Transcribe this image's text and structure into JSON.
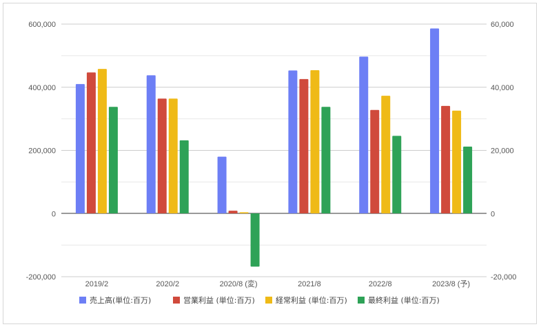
{
  "chart_data": {
    "type": "bar",
    "title": "",
    "xlabel": "",
    "ylabel": "",
    "categories": [
      "2019/2",
      "2020/2",
      "2020/8 (変)",
      "2021/8",
      "2022/8",
      "2023/8 (予)"
    ],
    "series": [
      {
        "name": "売上高(単位:百万)",
        "axis": "left",
        "color": "#6d7ff5",
        "values": [
          410000,
          438000,
          180000,
          453000,
          497000,
          586000
        ]
      },
      {
        "name": "営業利益 (単位:百万)",
        "axis": "right",
        "color": "#d04a3c",
        "values": [
          44700,
          36400,
          900,
          42600,
          32800,
          34100
        ]
      },
      {
        "name": "経常利益 (単位:百万)",
        "axis": "right",
        "color": "#efba17",
        "values": [
          45800,
          36400,
          400,
          45400,
          37300,
          32600
        ]
      },
      {
        "name": "最終利益 (単位:百万)",
        "axis": "right",
        "color": "#2ea257",
        "values": [
          33800,
          23200,
          -16800,
          33800,
          24600,
          21200
        ]
      }
    ],
    "left_axis": {
      "min": -200000,
      "max": 600000,
      "ticks": [
        600000,
        400000,
        200000,
        0,
        -200000
      ],
      "tick_labels": [
        "600,000",
        "400,000",
        "200,000",
        "0",
        "-200,000"
      ]
    },
    "right_axis": {
      "min": -20000,
      "max": 60000,
      "ticks": [
        60000,
        40000,
        20000,
        0,
        -20000
      ],
      "tick_labels": [
        "60,000",
        "40,000",
        "20,000",
        "0",
        "-20,000"
      ]
    },
    "grid": true,
    "legend_position": "bottom"
  }
}
